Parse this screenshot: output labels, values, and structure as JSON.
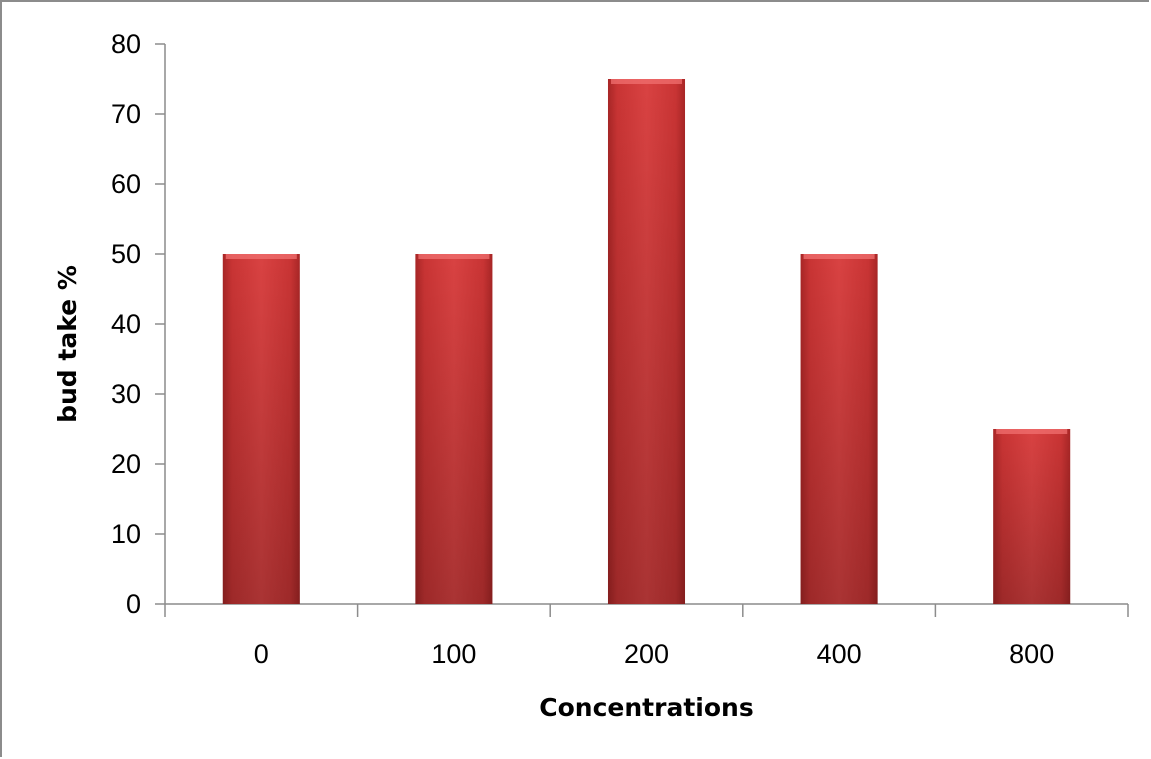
{
  "chart_data": {
    "type": "bar",
    "title": "",
    "xlabel": "Concentrations",
    "ylabel": "bud take %",
    "categories": [
      "0",
      "100",
      "200",
      "400",
      "800"
    ],
    "values": [
      50,
      50,
      75,
      50,
      25
    ],
    "ylim": [
      0,
      80
    ],
    "yticks": [
      "0",
      "10",
      "20",
      "30",
      "40",
      "50",
      "60",
      "70",
      "80"
    ],
    "grid": false,
    "legend": "none",
    "bar_color": "#d63c3c"
  }
}
